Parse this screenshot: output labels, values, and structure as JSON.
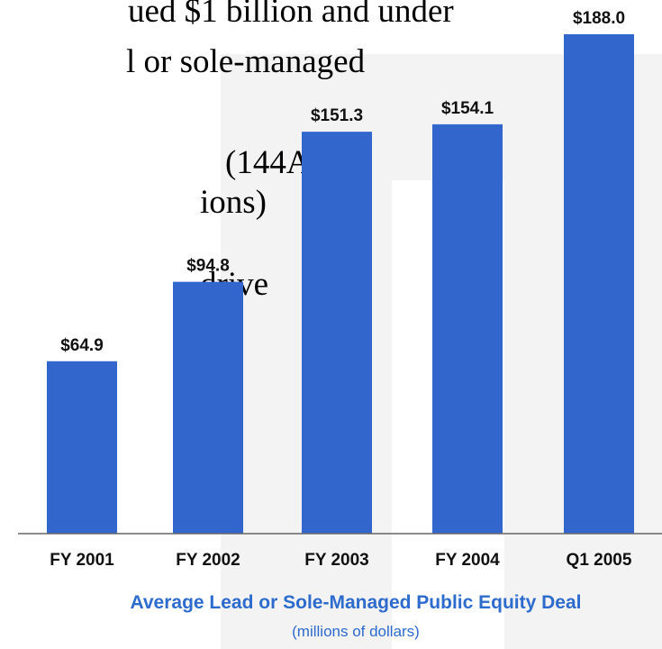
{
  "chart_data": {
    "type": "bar",
    "title": "Average Lead or Sole-Managed Public Equity Deal",
    "subtitle": "(millions of dollars)",
    "annotations": [
      "ued $1 billion and under",
      "l or sole-managed",
      "(144A,",
      "ions)",
      "drive"
    ],
    "categories": [
      "FY 2001",
      "FY 2002",
      "FY 2003",
      "FY 2004",
      "Q1 2005"
    ],
    "values": [
      64.9,
      94.8,
      151.3,
      154.1,
      188.0
    ],
    "value_labels": [
      "$64.9",
      "$94.8",
      "$151.3",
      "$154.1",
      "$188.0"
    ],
    "color": "#3366cc"
  }
}
